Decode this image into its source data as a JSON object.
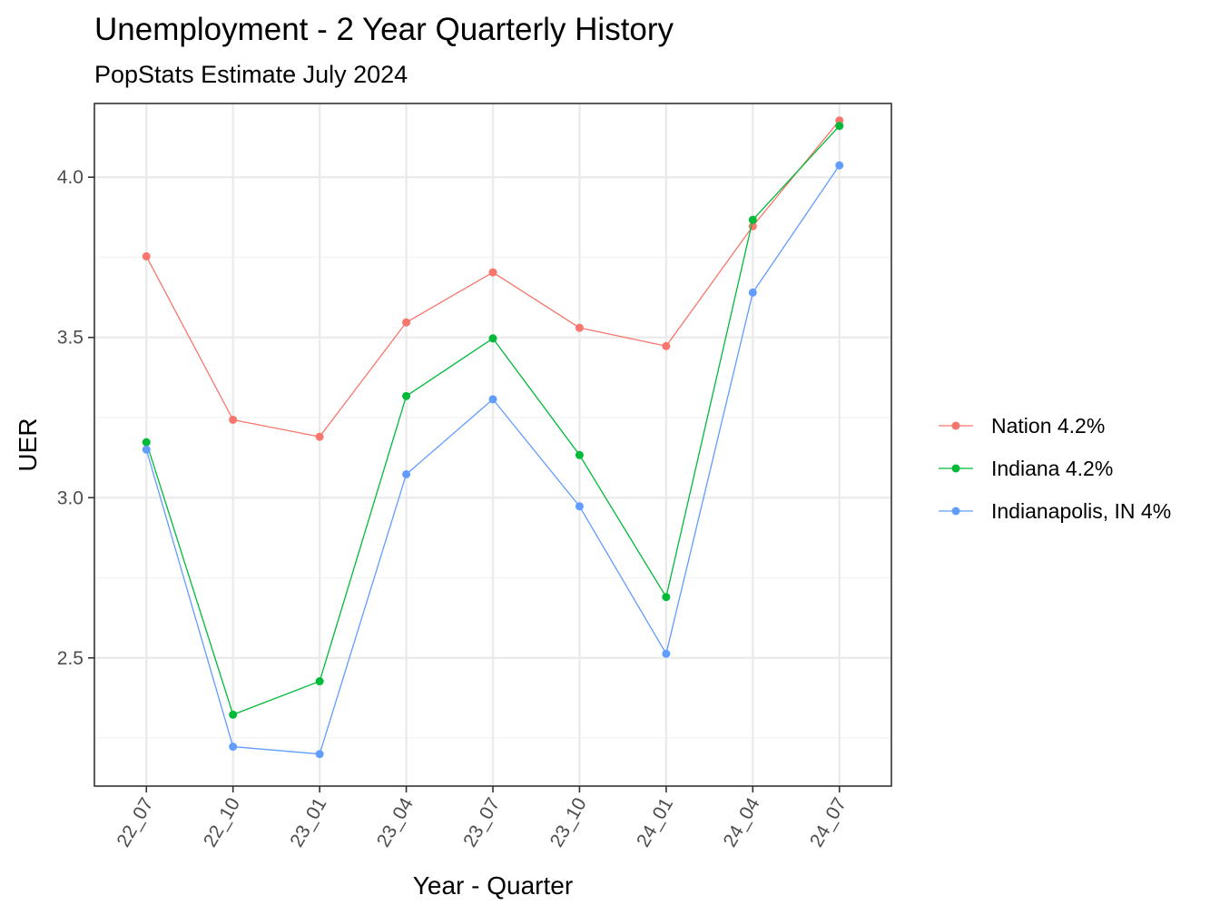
{
  "chart_data": {
    "type": "line",
    "title": "Unemployment - 2 Year Quarterly History",
    "subtitle": "PopStats Estimate July 2024",
    "xlabel": "Year - Quarter",
    "ylabel": "UER",
    "categories": [
      "22_07",
      "22_10",
      "23_01",
      "23_04",
      "23_07",
      "23_10",
      "24_01",
      "24_04",
      "24_07"
    ],
    "ylim": [
      2.1,
      4.23
    ],
    "yticks": [
      2.5,
      3.0,
      3.5,
      4.0
    ],
    "ytick_labels": [
      "2.5",
      "3.0",
      "3.5",
      "4.0"
    ],
    "grid": true,
    "legend_position": "right",
    "series": [
      {
        "name": "Nation 4.2%",
        "color": "#F8766D",
        "values": [
          3.753,
          3.243,
          3.19,
          3.547,
          3.703,
          3.53,
          3.473,
          3.847,
          4.177
        ]
      },
      {
        "name": "Indiana 4.2%",
        "color": "#00BA38",
        "values": [
          3.173,
          2.323,
          2.427,
          3.317,
          3.497,
          3.133,
          2.69,
          3.867,
          4.16
        ]
      },
      {
        "name": "Indianapolis, IN 4%",
        "color": "#619CFF",
        "values": [
          3.15,
          2.223,
          2.2,
          3.073,
          3.307,
          2.973,
          2.513,
          3.64,
          4.037
        ]
      }
    ]
  }
}
